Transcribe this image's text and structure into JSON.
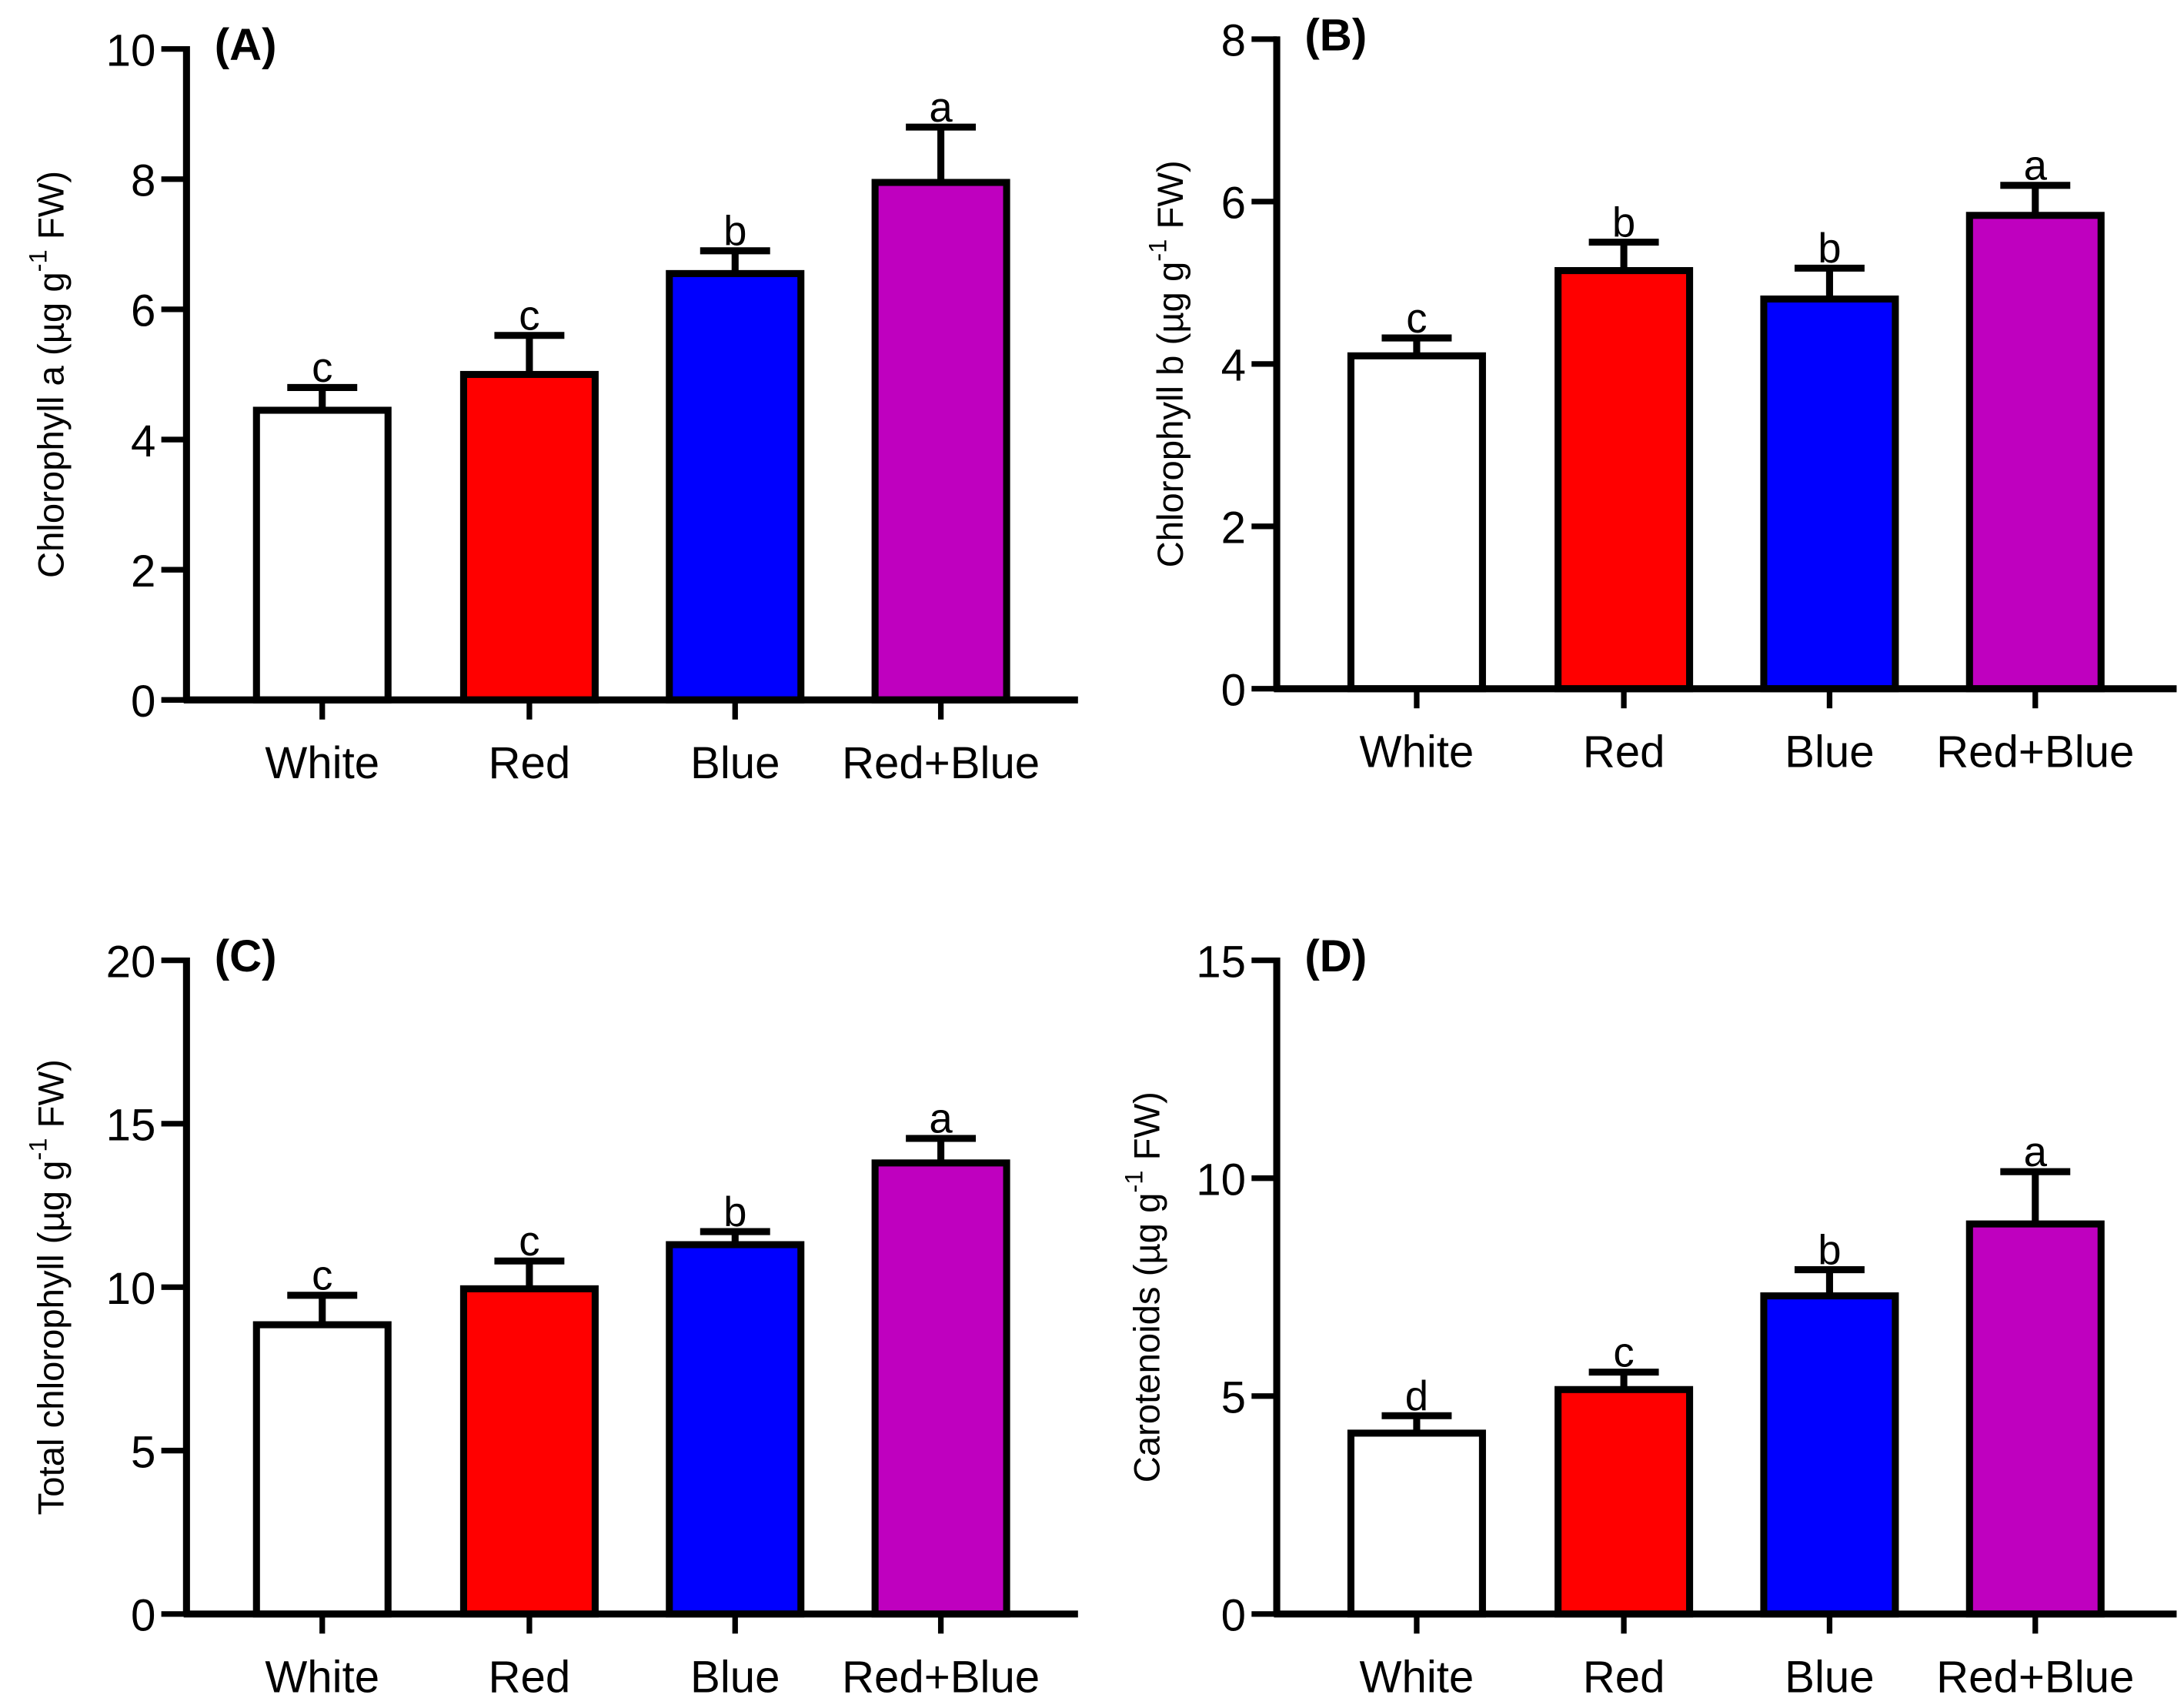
{
  "chart_data": [
    {
      "type": "bar",
      "panel_label": "(A)",
      "categories": [
        "White",
        "Red",
        "Blue",
        "Red+Blue"
      ],
      "values": [
        4.45,
        5.0,
        6.55,
        7.95
      ],
      "errors": [
        0.35,
        0.6,
        0.35,
        0.85
      ],
      "significance": [
        "c",
        "c",
        "b",
        "a"
      ],
      "ylabel": {
        "main": "Chlorophyll a (µg g",
        "sup": "-1",
        "end": " FW)"
      },
      "xlabel": "",
      "ylim": [
        0,
        10
      ],
      "yticks": [
        0,
        2,
        4,
        6,
        8,
        10
      ]
    },
    {
      "type": "bar",
      "panel_label": "(B)",
      "categories": [
        "White",
        "Red",
        "Blue",
        "Red+Blue"
      ],
      "values": [
        4.1,
        5.15,
        4.8,
        5.83
      ],
      "errors": [
        0.22,
        0.35,
        0.38,
        0.37
      ],
      "significance": [
        "c",
        "b",
        "b",
        "a"
      ],
      "ylabel": {
        "main": "Chlorophyll b (µg g",
        "sup": "-1",
        "end": " FW)"
      },
      "xlabel": "",
      "ylim": [
        0,
        8
      ],
      "yticks": [
        0,
        2,
        4,
        6,
        8
      ]
    },
    {
      "type": "bar",
      "panel_label": "(C)",
      "categories": [
        "White",
        "Red",
        "Blue",
        "Red+Blue"
      ],
      "values": [
        8.85,
        9.95,
        11.3,
        13.8
      ],
      "errors": [
        0.9,
        0.85,
        0.4,
        0.75
      ],
      "significance": [
        "c",
        "c",
        "b",
        "a"
      ],
      "ylabel": {
        "main": "Total chlorophyll (µg g",
        "sup": "-1",
        "end": " FW)"
      },
      "xlabel": "",
      "ylim": [
        0,
        20
      ],
      "yticks": [
        0,
        5,
        10,
        15,
        20
      ]
    },
    {
      "type": "bar",
      "panel_label": "(D)",
      "categories": [
        "White",
        "Red",
        "Blue",
        "Red+Blue"
      ],
      "values": [
        4.15,
        5.15,
        7.3,
        8.95
      ],
      "errors": [
        0.4,
        0.4,
        0.6,
        1.2
      ],
      "significance": [
        "d",
        "c",
        "b",
        "a"
      ],
      "ylabel": {
        "main": "Carotenoids (µg g",
        "sup": "-1",
        "end": " FW)"
      },
      "xlabel": "",
      "ylim": [
        0,
        15
      ],
      "yticks": [
        0,
        5,
        10,
        15
      ]
    }
  ],
  "colors": {
    "White": "#ffffff",
    "Red": "#ff0000",
    "Blue": "#0000ff",
    "Red+Blue": "#bf00bf",
    "outline": "#000000"
  }
}
